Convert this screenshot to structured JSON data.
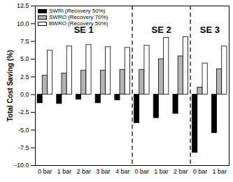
{
  "chart_data": {
    "type": "bar",
    "y_label": "Total Cost Saving (%)",
    "categories": [
      "0 bar",
      "1 bar",
      "2 bar",
      "3 bar",
      "4 bar",
      "0 bar",
      "1 bar",
      "2 bar",
      "0 bar",
      "1 bar"
    ],
    "sections": [
      "SE 1",
      "SE 1",
      "SE 1",
      "SE 1",
      "SE 1",
      "SE 2",
      "SE 2",
      "SE 2",
      "SE 3",
      "SE 3"
    ],
    "series": [
      {
        "name": "SWRI (Recovery 50%)",
        "color": "#000000",
        "values": [
          -1.2,
          -1.3,
          -0.7,
          -1.2,
          -0.8,
          -4.0,
          -3.3,
          -2.7,
          -8.2,
          -5.4
        ]
      },
      {
        "name": "SWRO (Recovery 70%)",
        "color": "#b4b4b4",
        "values": [
          2.7,
          3.0,
          3.4,
          3.4,
          3.5,
          3.5,
          5.0,
          5.4,
          1.0,
          3.6
        ]
      },
      {
        "name": "BWRO (Recovery 50%)",
        "color": "#ffffff",
        "values": [
          6.2,
          6.8,
          7.0,
          6.7,
          6.6,
          6.9,
          8.0,
          8.1,
          4.4,
          6.8
        ]
      }
    ],
    "ylim": [
      -10,
      12.5
    ],
    "yticks": [
      {
        "value": -10,
        "label": "-10.0"
      },
      -7.5,
      {
        "value": -5,
        "label": "-5.0"
      },
      -2.5,
      {
        "value": 0,
        "label": "0.0"
      },
      2.5,
      {
        "value": 5,
        "label": "5.0"
      },
      7.5,
      {
        "value": 10,
        "label": "10.0"
      },
      12.5
    ],
    "legend": "top-left"
  }
}
